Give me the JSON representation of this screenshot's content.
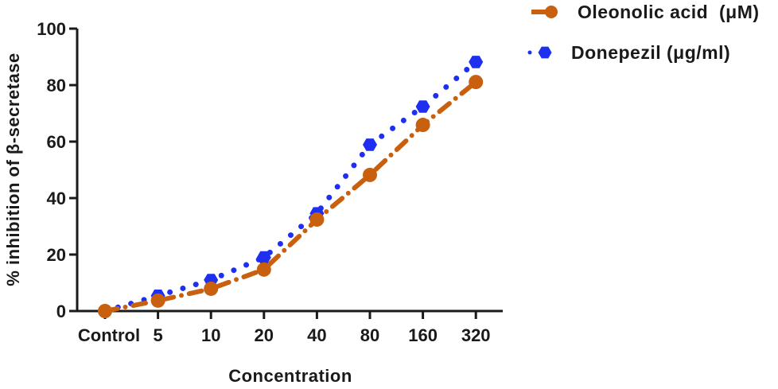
{
  "chart_data": {
    "type": "line",
    "title": "",
    "xlabel": "Concentration",
    "ylabel": "% inhibition of β-secretase",
    "categories": [
      "Control",
      "5",
      "10",
      "20",
      "40",
      "80",
      "160",
      "320"
    ],
    "ylim": [
      0,
      100
    ],
    "yticks": [
      "0",
      "20",
      "40",
      "60",
      "80",
      "100"
    ],
    "ytick_values": [
      0,
      20,
      40,
      60,
      80,
      100
    ],
    "grid": false,
    "legend_position": "top-right",
    "series": [
      {
        "name": "Oleonolic acid  (μM)",
        "color": "#c8600f",
        "marker": "circle",
        "line": "dash-dot",
        "values": [
          0,
          3.7,
          7.9,
          14.7,
          32.4,
          48.2,
          65.9,
          81.1
        ]
      },
      {
        "name": "Donepezil (μg/ml)",
        "color": "#1f2ff0",
        "marker": "hexagon",
        "line": "dotted",
        "values": [
          0,
          5.4,
          11.0,
          19.0,
          34.6,
          58.9,
          72.4,
          88.2
        ]
      }
    ]
  }
}
